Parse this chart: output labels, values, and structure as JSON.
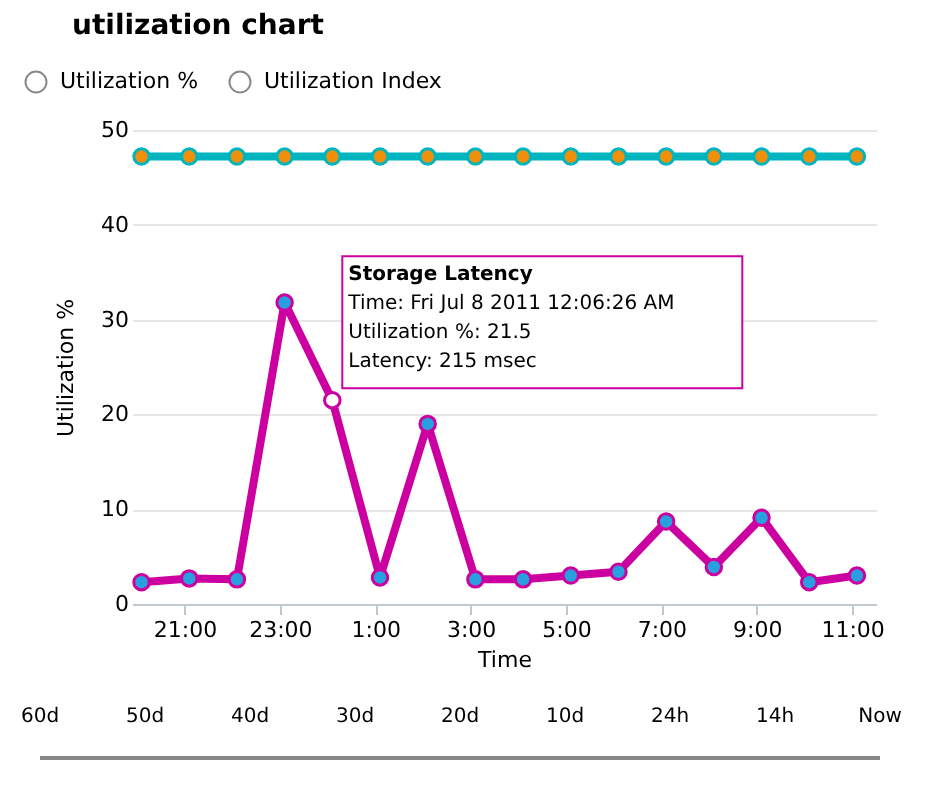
{
  "chart_data": {
    "type": "line",
    "title": "utilization chart",
    "xlabel": "Time",
    "ylabel": "Utilization %",
    "x": [
      "2011-07-07T20:06",
      "2011-07-07T21:06",
      "2011-07-07T22:06",
      "2011-07-07T23:06",
      "2011-07-08T00:06",
      "2011-07-08T01:06",
      "2011-07-08T02:06",
      "2011-07-08T03:06",
      "2011-07-08T04:06",
      "2011-07-08T05:06",
      "2011-07-08T06:06",
      "2011-07-08T07:06",
      "2011-07-08T08:06",
      "2011-07-08T09:06",
      "2011-07-08T10:06",
      "2011-07-08T11:06"
    ],
    "series": [
      {
        "color": "#00b5c0",
        "colors": [
          "#f0900a",
          "#f0900a",
          "#f0900a",
          "#f0900a",
          "#f0900a",
          "#f0900a",
          "#f0900a",
          "#f0900a",
          "#f0900a",
          "#f0900a",
          "#f0900a",
          "#f0900a",
          "#f0900a",
          "#f0900a",
          "#f0900a",
          "#f0900a"
        ],
        "values": [
          47.2,
          47.2,
          47.2,
          47.2,
          47.2,
          47.2,
          47.2,
          47.2,
          47.2,
          47.2,
          47.2,
          47.2,
          47.2,
          47.2,
          47.2,
          47.2
        ]
      },
      {
        "color": "#cc00a0",
        "colors": [
          "#2a9fe0",
          "#2a9fe0",
          "#2a9fe0",
          "#2a9fe0",
          "#ffffff",
          "#2a9fe0",
          "#2a9fe0",
          "#2a9fe0",
          "#2a9fe0",
          "#2a9fe0",
          "#2a9fe0",
          "#2a9fe0",
          "#2a9fe0",
          "#2a9fe0",
          "#2a9fe0",
          "#2a9fe0"
        ],
        "values": [
          2.3,
          2.7,
          2.6,
          31.8,
          21.5,
          2.8,
          19.0,
          2.6,
          2.6,
          3.0,
          3.4,
          8.7,
          3.9,
          9.1,
          2.3,
          3.0
        ]
      }
    ],
    "xlim": [
      "2011-07-07T19:54",
      "2011-07-08T11:30"
    ],
    "xticks": [
      {
        "value": "2011-07-07T21:00",
        "label": "21:00"
      },
      {
        "value": "2011-07-07T23:00",
        "label": "23:00"
      },
      {
        "value": "2011-07-08T01:00",
        "label": "1:00"
      },
      {
        "value": "2011-07-08T03:00",
        "label": "3:00"
      },
      {
        "value": "2011-07-08T05:00",
        "label": "5:00"
      },
      {
        "value": "2011-07-08T07:00",
        "label": "7:00"
      },
      {
        "value": "2011-07-08T09:00",
        "label": "9:00"
      },
      {
        "value": "2011-07-08T11:00",
        "label": "11:00"
      }
    ],
    "ylim": [
      0,
      50
    ],
    "yticks": [
      0,
      10,
      20,
      30,
      40,
      50
    ],
    "grid": "y",
    "legend": false,
    "marker": "circle",
    "line_style": "solid",
    "annotations": [
      "Utilization %",
      "Utilization Index",
      {
        "text": "Storage Latency\nTime: Fri Jul 8 2011 12:06:26 AM\nUtilization %: 21.5\nLatency: 215 msec",
        "x": "2011-07-08T00:06",
        "y": 21.5
      },
      "60d",
      "50d",
      "40d",
      "30d",
      "20d",
      "10d",
      "24h",
      "14h",
      "Now"
    ]
  }
}
